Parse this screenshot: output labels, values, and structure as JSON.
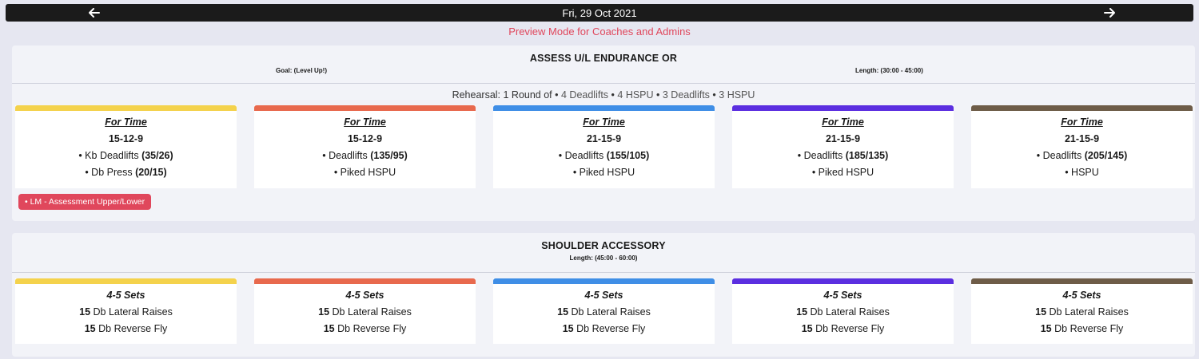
{
  "header": {
    "date": "Fri, 29 Oct 2021",
    "prev_icon": "arrow-left-icon",
    "next_icon": "arrow-right-icon"
  },
  "preview_notice": "Preview Mode for Coaches and Admins",
  "colors": {
    "preview": "#e0475c",
    "tiers": [
      "#f4d24c",
      "#e8694d",
      "#3f8ee6",
      "#5b2ee0",
      "#6e5c48"
    ],
    "tag": "#e0475c"
  },
  "workouts": [
    {
      "title": "ASSESS U/L ENDURANCE OR",
      "goal": "Goal: (Level Up!)",
      "length": "Length: (30:00 - 45:00)",
      "rehearsal": {
        "prefix": "Rehearsal: 1 Round of •",
        "items": [
          "4 Deadlifts",
          "4 HSPU",
          "3 Deadlifts",
          "3 HSPU"
        ]
      },
      "tiers": [
        {
          "scheme": "For Time",
          "reps": "15-12-9",
          "lines": [
            {
              "name": "• Kb Deadlifts",
              "load": "(35/26)"
            },
            {
              "name": "• Db Press",
              "load": "(20/15)"
            }
          ]
        },
        {
          "scheme": "For Time",
          "reps": "15-12-9",
          "lines": [
            {
              "name": "• Deadlifts",
              "load": "(135/95)"
            },
            {
              "name": "• Piked HSPU",
              "load": ""
            }
          ]
        },
        {
          "scheme": "For Time",
          "reps": "21-15-9",
          "lines": [
            {
              "name": "• Deadlifts",
              "load": "(155/105)"
            },
            {
              "name": "• Piked HSPU",
              "load": ""
            }
          ]
        },
        {
          "scheme": "For Time",
          "reps": "21-15-9",
          "lines": [
            {
              "name": "• Deadlifts",
              "load": "(185/135)"
            },
            {
              "name": "• Piked HSPU",
              "load": ""
            }
          ]
        },
        {
          "scheme": "For Time",
          "reps": "21-15-9",
          "lines": [
            {
              "name": "• Deadlifts",
              "load": "(205/145)"
            },
            {
              "name": "• HSPU",
              "load": ""
            }
          ]
        }
      ],
      "tag": "• LM - Assessment Upper/Lower"
    },
    {
      "title": "SHOULDER ACCESSORY",
      "length": "Length: (45:00 - 60:00)",
      "tiers": [
        {
          "scheme": "4-5 Sets",
          "lines": [
            {
              "reps": "15",
              "name": "Db Lateral Raises"
            },
            {
              "reps": "15",
              "name": "Db Reverse Fly"
            }
          ]
        },
        {
          "scheme": "4-5 Sets",
          "lines": [
            {
              "reps": "15",
              "name": "Db Lateral Raises"
            },
            {
              "reps": "15",
              "name": "Db Reverse Fly"
            }
          ]
        },
        {
          "scheme": "4-5 Sets",
          "lines": [
            {
              "reps": "15",
              "name": "Db Lateral Raises"
            },
            {
              "reps": "15",
              "name": "Db Reverse Fly"
            }
          ]
        },
        {
          "scheme": "4-5 Sets",
          "lines": [
            {
              "reps": "15",
              "name": "Db Lateral Raises"
            },
            {
              "reps": "15",
              "name": "Db Reverse Fly"
            }
          ]
        },
        {
          "scheme": "4-5 Sets",
          "lines": [
            {
              "reps": "15",
              "name": "Db Lateral Raises"
            },
            {
              "reps": "15",
              "name": "Db Reverse Fly"
            }
          ]
        }
      ]
    }
  ]
}
